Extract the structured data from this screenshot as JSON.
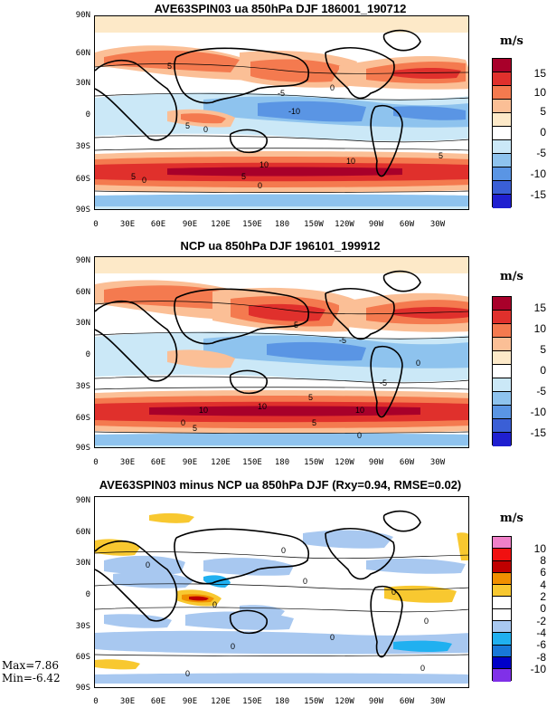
{
  "panels": [
    {
      "title": "AVE63SPIN03 ua 850hPa DJF 186001_190712",
      "units": "m/s",
      "colorbar_labels": [
        "15",
        "10",
        "5",
        "0",
        "-5",
        "-10",
        "-15"
      ],
      "colorbar_colors": [
        "#a8002a",
        "#e0302c",
        "#f47a4f",
        "#fbbf96",
        "#fde9c8",
        "#ffffff",
        "#cbe8f7",
        "#8ec3ee",
        "#5a95e4",
        "#3a5fd6",
        "#1f1fd0"
      ],
      "contour_labels": [
        "5",
        "-5",
        "-10",
        "0",
        "0",
        "5",
        "10",
        "10",
        "5",
        "5",
        "0",
        "5",
        "0"
      ]
    },
    {
      "title": "NCP ua 850hPa DJF 196101_199912",
      "units": "m/s",
      "colorbar_labels": [
        "15",
        "10",
        "5",
        "0",
        "-5",
        "-10",
        "-15"
      ],
      "colorbar_colors": [
        "#a8002a",
        "#e0302c",
        "#f47a4f",
        "#fbbf96",
        "#fde9c8",
        "#ffffff",
        "#cbe8f7",
        "#8ec3ee",
        "#5a95e4",
        "#3a5fd6",
        "#1f1fd0"
      ],
      "contour_labels": [
        "5",
        "-5",
        "0",
        "-5",
        "10",
        "10",
        "5",
        "10",
        "5",
        "0",
        "5",
        "0"
      ]
    },
    {
      "title": "AVE63SPIN03 minus NCP ua 850hPa DJF (Rxy=0.94, RMSE=0.02)",
      "units": "m/s",
      "colorbar_labels": [
        "10",
        "8",
        "6",
        "4",
        "2",
        "0",
        "-2",
        "-4",
        "-6",
        "-8",
        "-10"
      ],
      "colorbar_colors": [
        "#f080c8",
        "#f01010",
        "#c00000",
        "#f09000",
        "#f8c830",
        "#ffffff",
        "#ffffff",
        "#a8c8f0",
        "#20b0f0",
        "#1878d8",
        "#0000c8",
        "#8030e8"
      ],
      "contour_labels": [
        "0",
        "0",
        "0",
        "0",
        "0",
        "0",
        "0",
        "0",
        "0",
        "0"
      ],
      "stats": {
        "max": "Max=7.86",
        "min": "Min=-6.42"
      }
    }
  ],
  "lat_ticks": [
    "90N",
    "60N",
    "30N",
    "0",
    "30S",
    "60S",
    "90S"
  ],
  "lon_ticks": [
    "0",
    "30E",
    "60E",
    "90E",
    "120E",
    "150E",
    "180",
    "150W",
    "120W",
    "90W",
    "60W",
    "30W"
  ],
  "icons": {
    "map": "world-map",
    "coastline": "coastline-icon"
  }
}
